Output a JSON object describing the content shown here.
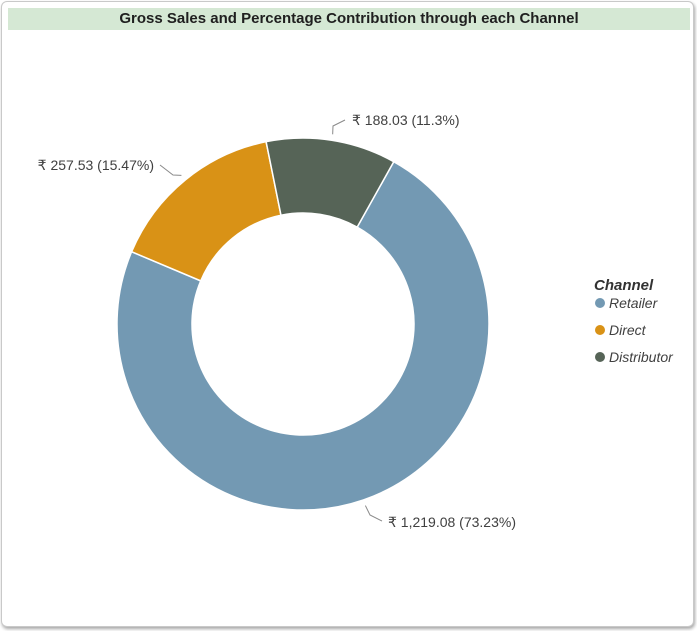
{
  "chart_data": {
    "type": "pie",
    "title": "Gross Sales and Percentage Contribution through each Channel",
    "legend_title": "Channel",
    "legend_position": "right",
    "donut": true,
    "slices": [
      {
        "name": "Retailer",
        "value": 1219.08,
        "percent": 73.23,
        "label": "₹ 1,219.08 (73.23%)",
        "color": "#7399b3"
      },
      {
        "name": "Direct",
        "value": 257.53,
        "percent": 15.47,
        "label": "₹ 257.53 (15.47%)",
        "color": "#d99216"
      },
      {
        "name": "Distributor",
        "value": 188.03,
        "percent": 11.3,
        "label": "₹ 188.03 (11.3%)",
        "color": "#566457"
      }
    ]
  }
}
